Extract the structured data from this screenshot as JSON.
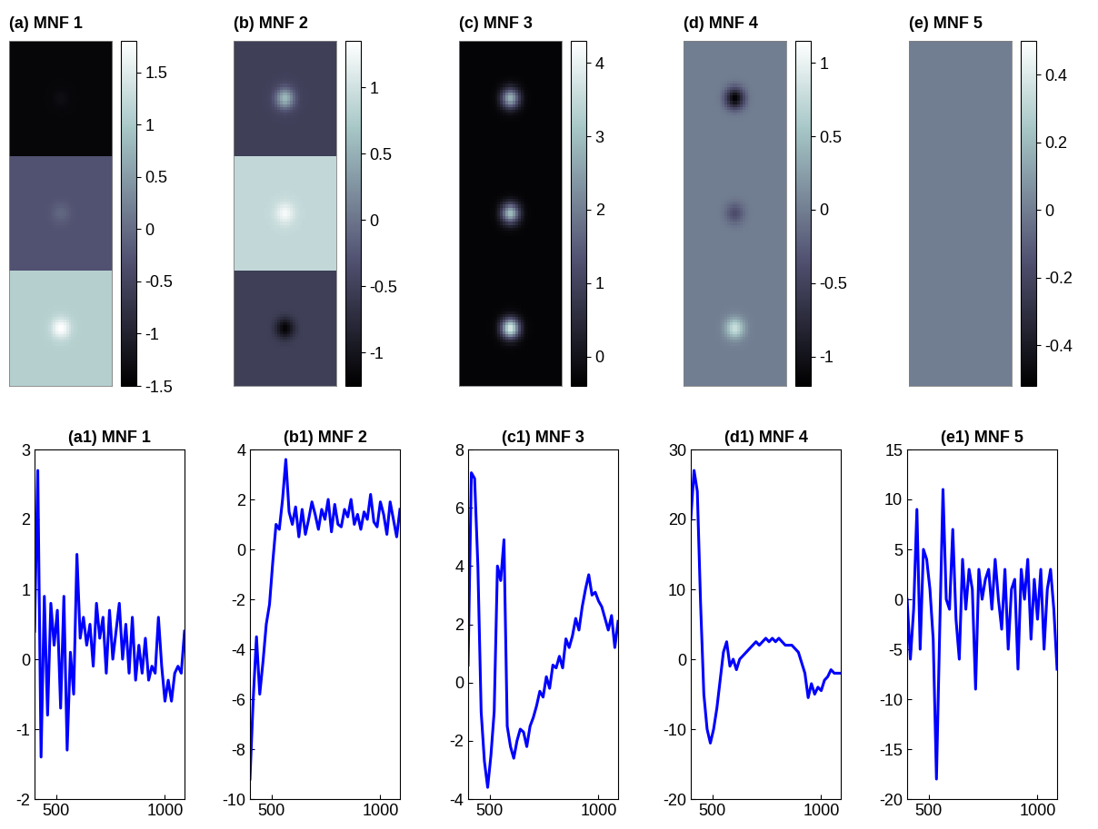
{
  "chart_data": [
    {
      "type": "heatmap",
      "title": "(a) MNF 1",
      "tick_labels": false,
      "bands": [
        {
          "background": -1.4,
          "spot": -1.3
        },
        {
          "background": -0.3,
          "spot": -0.05
        },
        {
          "background": 1.1,
          "spot": 1.8
        }
      ],
      "colorbar_range": [
        -1.5,
        1.8
      ],
      "colorbar_ticks": [
        -1.5,
        -1,
        -0.5,
        0,
        0.5,
        1,
        1.5
      ]
    },
    {
      "type": "heatmap",
      "title": "(b) MNF 2",
      "tick_labels": false,
      "bands": [
        {
          "background": -0.5,
          "spot": 0.6
        },
        {
          "background": 0.9,
          "spot": 1.3
        },
        {
          "background": -0.5,
          "spot": -1.2
        }
      ],
      "colorbar_range": [
        -1.25,
        1.35
      ],
      "colorbar_ticks": [
        -1,
        -0.5,
        0,
        0.5,
        1
      ]
    },
    {
      "type": "heatmap",
      "title": "(c) MNF 3",
      "tick_labels": false,
      "bands": [
        {
          "background": -0.3,
          "spot": 2.8
        },
        {
          "background": -0.3,
          "spot": 3.0
        },
        {
          "background": -0.3,
          "spot": 3.8
        }
      ],
      "colorbar_range": [
        -0.4,
        4.3
      ],
      "colorbar_ticks": [
        0,
        1,
        2,
        3,
        4
      ]
    },
    {
      "type": "heatmap",
      "title": "(d) MNF 4",
      "tick_labels": false,
      "bands": [
        {
          "background": 0.0,
          "spot": -1.2
        },
        {
          "background": 0.0,
          "spot": -0.4
        },
        {
          "background": 0.0,
          "spot": 0.8
        }
      ],
      "colorbar_range": [
        -1.2,
        1.15
      ],
      "colorbar_ticks": [
        -1,
        -0.5,
        0,
        0.5,
        1
      ]
    },
    {
      "type": "heatmap",
      "title": "(e) MNF 5",
      "tick_labels": false,
      "bands": [
        {
          "background": 0.0,
          "spot": 0.0
        },
        {
          "background": 0.0,
          "spot": 0.0
        },
        {
          "background": 0.0,
          "spot": 0.0
        }
      ],
      "colorbar_range": [
        -0.52,
        0.5
      ],
      "colorbar_ticks": [
        -0.4,
        -0.2,
        0,
        0.2,
        0.4
      ]
    },
    {
      "type": "line",
      "title": "(a1) MNF 1",
      "color": "#0000ff",
      "x": [
        400,
        415,
        430,
        445,
        460,
        475,
        490,
        505,
        520,
        535,
        550,
        565,
        580,
        595,
        610,
        625,
        640,
        655,
        670,
        685,
        700,
        715,
        730,
        745,
        760,
        775,
        790,
        805,
        820,
        835,
        850,
        865,
        880,
        895,
        910,
        925,
        940,
        955,
        970,
        985,
        1000,
        1015,
        1030,
        1045,
        1060,
        1075,
        1090
      ],
      "values": [
        0.4,
        2.7,
        -1.4,
        0.9,
        -0.8,
        0.8,
        0.2,
        0.7,
        -0.7,
        0.9,
        -1.3,
        0.1,
        -0.5,
        1.5,
        0.3,
        0.6,
        0.2,
        0.5,
        -0.1,
        0.8,
        0.3,
        0.6,
        -0.2,
        0.7,
        0.0,
        0.4,
        0.8,
        0.0,
        0.5,
        -0.2,
        0.6,
        -0.3,
        0.2,
        -0.2,
        0.3,
        -0.3,
        -0.1,
        -0.2,
        0.6,
        -0.1,
        -0.6,
        -0.3,
        -0.6,
        -0.2,
        -0.1,
        -0.2,
        0.4
      ],
      "xlim": [
        400,
        1090
      ],
      "xticks": [
        500,
        1000
      ],
      "ylim": [
        -2,
        3
      ],
      "yticks": [
        -2,
        -1,
        0,
        1,
        2,
        3
      ]
    },
    {
      "type": "line",
      "title": "(b1) MNF 2",
      "color": "#0000ff",
      "x": [
        400,
        415,
        430,
        445,
        460,
        475,
        490,
        505,
        520,
        535,
        550,
        565,
        580,
        595,
        610,
        625,
        640,
        655,
        670,
        685,
        700,
        715,
        730,
        745,
        760,
        775,
        790,
        805,
        820,
        835,
        850,
        865,
        880,
        895,
        910,
        925,
        940,
        955,
        970,
        985,
        1000,
        1015,
        1030,
        1045,
        1060,
        1075,
        1090
      ],
      "values": [
        -9.2,
        -6,
        -3.5,
        -5.8,
        -4.5,
        -3,
        -2.2,
        -0.5,
        1,
        0.8,
        2,
        3.6,
        1.5,
        1,
        1.7,
        0.5,
        1.6,
        0.6,
        1.2,
        1.9,
        1.4,
        0.8,
        1.6,
        1.2,
        2,
        0.7,
        1.8,
        1,
        0.9,
        1.6,
        1.3,
        2,
        1,
        1.4,
        0.8,
        1.5,
        1.2,
        2.2,
        1.1,
        0.9,
        1.9,
        1.4,
        0.6,
        1.9,
        1.2,
        0.5,
        1.6
      ],
      "xlim": [
        400,
        1090
      ],
      "xticks": [
        500,
        1000
      ],
      "ylim": [
        -10,
        4
      ],
      "yticks": [
        -10,
        -8,
        -6,
        -4,
        -2,
        0,
        2,
        4
      ]
    },
    {
      "type": "line",
      "title": "(c1) MNF 3",
      "color": "#0000ff",
      "x": [
        400,
        415,
        430,
        445,
        460,
        475,
        490,
        505,
        520,
        535,
        550,
        565,
        580,
        595,
        610,
        625,
        640,
        655,
        670,
        685,
        700,
        715,
        730,
        745,
        760,
        775,
        790,
        805,
        820,
        835,
        850,
        865,
        880,
        895,
        910,
        925,
        940,
        955,
        970,
        985,
        1000,
        1015,
        1030,
        1045,
        1060,
        1075,
        1090
      ],
      "values": [
        0.6,
        7.2,
        7.0,
        4,
        -1,
        -2.7,
        -3.6,
        -2.5,
        -1,
        4,
        3.5,
        4.9,
        -1.5,
        -2.2,
        -2.6,
        -2,
        -1.6,
        -1.7,
        -2.2,
        -1.5,
        -1.2,
        -0.8,
        -0.3,
        -0.5,
        0.2,
        -0.2,
        0.6,
        0.5,
        0.9,
        0.5,
        1.5,
        1.2,
        1.6,
        2.2,
        1.8,
        2.6,
        3.2,
        3.7,
        3.0,
        3.1,
        2.8,
        2.6,
        2.2,
        1.8,
        2.3,
        1.2,
        2.1
      ],
      "xlim": [
        400,
        1090
      ],
      "xticks": [
        500,
        1000
      ],
      "ylim": [
        -4,
        8
      ],
      "yticks": [
        -4,
        -2,
        0,
        2,
        4,
        6,
        8
      ]
    },
    {
      "type": "line",
      "title": "(d1) MNF 4",
      "color": "#0000ff",
      "x": [
        400,
        415,
        430,
        445,
        460,
        475,
        490,
        505,
        520,
        535,
        550,
        565,
        580,
        595,
        610,
        625,
        640,
        655,
        670,
        685,
        700,
        715,
        730,
        745,
        760,
        775,
        790,
        805,
        820,
        835,
        850,
        865,
        880,
        895,
        910,
        925,
        940,
        955,
        970,
        985,
        1000,
        1015,
        1030,
        1045,
        1060,
        1075,
        1090
      ],
      "values": [
        20,
        27,
        24,
        8,
        -5,
        -10,
        -12,
        -10,
        -7,
        -3,
        1,
        2.5,
        -1,
        0,
        -1.5,
        0,
        0.5,
        1,
        1.5,
        2,
        2.5,
        2,
        2.5,
        3,
        2.5,
        3,
        2.5,
        3,
        2.5,
        2,
        2,
        2,
        1.5,
        1,
        -0.5,
        -2,
        -5.5,
        -3.5,
        -5,
        -4,
        -4.5,
        -3,
        -2.5,
        -1.5,
        -2,
        -2,
        -2
      ],
      "xlim": [
        400,
        1090
      ],
      "xticks": [
        500,
        1000
      ],
      "ylim": [
        -20,
        30
      ],
      "yticks": [
        -20,
        -10,
        0,
        10,
        20,
        30
      ]
    },
    {
      "type": "line",
      "title": "(e1) MNF 5",
      "color": "#0000ff",
      "x": [
        400,
        415,
        430,
        445,
        460,
        475,
        490,
        505,
        520,
        535,
        550,
        565,
        580,
        595,
        610,
        625,
        640,
        655,
        670,
        685,
        700,
        715,
        730,
        745,
        760,
        775,
        790,
        805,
        820,
        835,
        850,
        865,
        880,
        895,
        910,
        925,
        940,
        955,
        970,
        985,
        1000,
        1015,
        1030,
        1045,
        1060,
        1075,
        1090
      ],
      "values": [
        0,
        -6,
        -1,
        9,
        -5,
        5,
        4,
        1,
        -4,
        -18,
        -3,
        11,
        0,
        -1,
        7,
        -2,
        -6,
        4,
        -1,
        3,
        1,
        -9,
        3,
        0,
        2,
        3,
        -1,
        4,
        0,
        -3,
        3,
        -5,
        1,
        2,
        -7,
        3,
        0,
        4,
        -4,
        2,
        -2,
        3,
        -5,
        1,
        3,
        -1,
        -7
      ],
      "xlim": [
        400,
        1090
      ],
      "xticks": [
        500,
        1000
      ],
      "ylim": [
        -20,
        15
      ],
      "yticks": [
        -20,
        -15,
        -10,
        -5,
        0,
        5,
        10,
        15
      ]
    }
  ]
}
